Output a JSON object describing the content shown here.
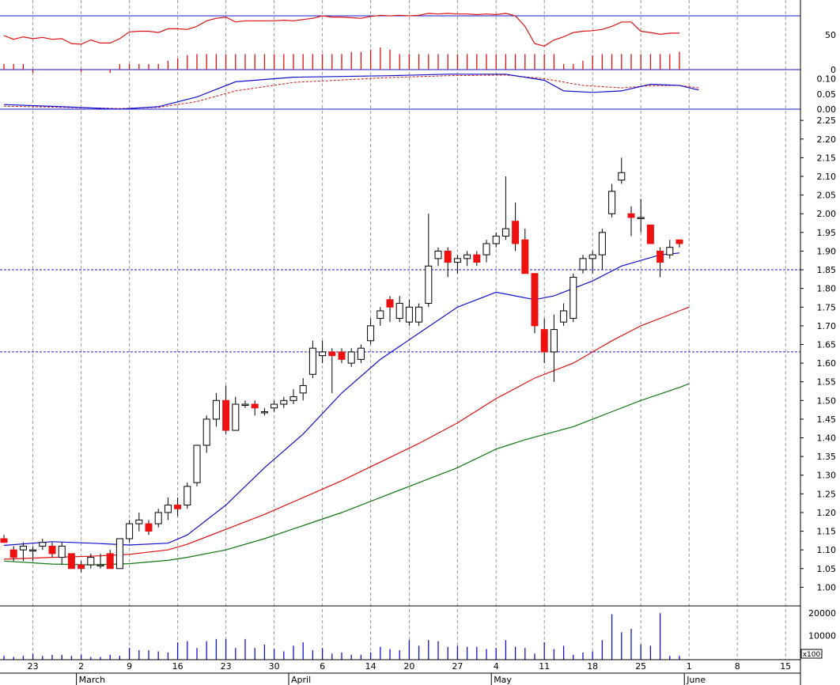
{
  "chart_data": {
    "type": "candlestick",
    "colors": {
      "up": "#ffffff",
      "down": "#ee1111",
      "outline": "#000000",
      "ma_short": "#1111cc",
      "ma_mid": "#dd1111",
      "ma_long": "#117711",
      "grid": "#999999",
      "frame": "#1a1acc",
      "volume": "#1111cc",
      "rsi": "#dd1111"
    },
    "x_axis": {
      "day_labels": [
        {
          "i": 3,
          "label": "23"
        },
        {
          "i": 8,
          "label": "2"
        },
        {
          "i": 13,
          "label": "9"
        },
        {
          "i": 18,
          "label": "16"
        },
        {
          "i": 23,
          "label": "23"
        },
        {
          "i": 28,
          "label": "30"
        },
        {
          "i": 33,
          "label": "6"
        },
        {
          "i": 38,
          "label": "14"
        },
        {
          "i": 42,
          "label": "20"
        },
        {
          "i": 47,
          "label": "27"
        },
        {
          "i": 51,
          "label": "4"
        },
        {
          "i": 56,
          "label": "11"
        },
        {
          "i": 61,
          "label": "18"
        },
        {
          "i": 66,
          "label": "25"
        },
        {
          "i": 71,
          "label": "1"
        },
        {
          "i": 76,
          "label": "8"
        },
        {
          "i": 81,
          "label": "15"
        }
      ],
      "month_labels": [
        {
          "i": 8,
          "label": "March"
        },
        {
          "i": 30,
          "label": "April"
        },
        {
          "i": 51,
          "label": "May"
        },
        {
          "i": 71,
          "label": "June"
        }
      ]
    },
    "price_axis": {
      "min": 0.95,
      "max": 2.28,
      "ticks": [
        "1.00",
        "1.05",
        "1.10",
        "1.15",
        "1.20",
        "1.25",
        "1.30",
        "1.35",
        "1.40",
        "1.45",
        "1.50",
        "1.55",
        "1.60",
        "1.65",
        "1.70",
        "1.75",
        "1.80",
        "1.85",
        "1.90",
        "1.95",
        "2.00",
        "2.05",
        "2.10",
        "2.15",
        "2.20",
        "2.25"
      ],
      "reference_lines": [
        1.85,
        1.63
      ]
    },
    "candles": [
      [
        1.13,
        1.14,
        1.12,
        1.12
      ],
      [
        1.1,
        1.11,
        1.07,
        1.08
      ],
      [
        1.1,
        1.12,
        1.07,
        1.11
      ],
      [
        1.1,
        1.11,
        1.07,
        1.1
      ],
      [
        1.11,
        1.13,
        1.1,
        1.12
      ],
      [
        1.11,
        1.12,
        1.08,
        1.09
      ],
      [
        1.08,
        1.12,
        1.06,
        1.11
      ],
      [
        1.09,
        1.09,
        1.05,
        1.05
      ],
      [
        1.06,
        1.07,
        1.04,
        1.05
      ],
      [
        1.06,
        1.09,
        1.05,
        1.08
      ],
      [
        1.06,
        1.09,
        1.05,
        1.06
      ],
      [
        1.09,
        1.1,
        1.05,
        1.05
      ],
      [
        1.05,
        1.13,
        1.05,
        1.13
      ],
      [
        1.13,
        1.18,
        1.12,
        1.17
      ],
      [
        1.17,
        1.2,
        1.15,
        1.18
      ],
      [
        1.17,
        1.18,
        1.14,
        1.15
      ],
      [
        1.17,
        1.21,
        1.16,
        1.2
      ],
      [
        1.2,
        1.24,
        1.18,
        1.22
      ],
      [
        1.22,
        1.24,
        1.19,
        1.21
      ],
      [
        1.22,
        1.28,
        1.21,
        1.27
      ],
      [
        1.28,
        1.38,
        1.27,
        1.38
      ],
      [
        1.38,
        1.46,
        1.36,
        1.45
      ],
      [
        1.45,
        1.52,
        1.43,
        1.5
      ],
      [
        1.5,
        1.54,
        1.41,
        1.42
      ],
      [
        1.42,
        1.51,
        1.42,
        1.49
      ],
      [
        1.49,
        1.5,
        1.48,
        1.49
      ],
      [
        1.49,
        1.5,
        1.46,
        1.48
      ],
      [
        1.47,
        1.48,
        1.46,
        1.47
      ],
      [
        1.48,
        1.5,
        1.47,
        1.49
      ],
      [
        1.49,
        1.51,
        1.48,
        1.5
      ],
      [
        1.5,
        1.53,
        1.49,
        1.51
      ],
      [
        1.52,
        1.56,
        1.5,
        1.54
      ],
      [
        1.57,
        1.66,
        1.56,
        1.64
      ],
      [
        1.62,
        1.66,
        1.6,
        1.63
      ],
      [
        1.63,
        1.64,
        1.52,
        1.62
      ],
      [
        1.63,
        1.64,
        1.6,
        1.61
      ],
      [
        1.6,
        1.64,
        1.59,
        1.63
      ],
      [
        1.61,
        1.65,
        1.6,
        1.64
      ],
      [
        1.66,
        1.72,
        1.65,
        1.7
      ],
      [
        1.72,
        1.75,
        1.7,
        1.74
      ],
      [
        1.77,
        1.78,
        1.71,
        1.75
      ],
      [
        1.72,
        1.78,
        1.71,
        1.76
      ],
      [
        1.71,
        1.77,
        1.7,
        1.75
      ],
      [
        1.71,
        1.76,
        1.7,
        1.75
      ],
      [
        1.76,
        2.0,
        1.75,
        1.86
      ],
      [
        1.88,
        1.91,
        1.86,
        1.9
      ],
      [
        1.9,
        1.91,
        1.83,
        1.87
      ],
      [
        1.87,
        1.89,
        1.84,
        1.88
      ],
      [
        1.88,
        1.9,
        1.86,
        1.89
      ],
      [
        1.89,
        1.9,
        1.86,
        1.87
      ],
      [
        1.89,
        1.93,
        1.87,
        1.92
      ],
      [
        1.92,
        1.95,
        1.91,
        1.94
      ],
      [
        1.94,
        2.1,
        1.93,
        1.96
      ],
      [
        1.98,
        2.03,
        1.9,
        1.92
      ],
      [
        1.93,
        1.96,
        1.84,
        1.84
      ],
      [
        1.84,
        1.84,
        1.68,
        1.7
      ],
      [
        1.69,
        1.72,
        1.6,
        1.63
      ],
      [
        1.63,
        1.73,
        1.55,
        1.69
      ],
      [
        1.71,
        1.76,
        1.7,
        1.74
      ],
      [
        1.72,
        1.84,
        1.71,
        1.83
      ],
      [
        1.85,
        1.89,
        1.84,
        1.88
      ],
      [
        1.88,
        1.9,
        1.84,
        1.89
      ],
      [
        1.89,
        1.96,
        1.85,
        1.95
      ],
      [
        2.0,
        2.08,
        1.99,
        2.06
      ],
      [
        2.09,
        2.15,
        2.08,
        2.11
      ],
      [
        2.0,
        2.02,
        1.94,
        1.99
      ],
      [
        1.99,
        2.04,
        1.95,
        1.99
      ],
      [
        1.97,
        1.97,
        1.92,
        1.92
      ],
      [
        1.9,
        1.91,
        1.83,
        1.87
      ],
      [
        1.89,
        1.93,
        1.88,
        1.91
      ],
      [
        1.93,
        1.93,
        1.91,
        1.92
      ]
    ],
    "moving_averages": [
      {
        "key": "short",
        "points": [
          [
            0,
            1.112
          ],
          [
            5,
            1.122
          ],
          [
            9,
            1.118
          ],
          [
            13,
            1.113
          ],
          [
            17,
            1.118
          ],
          [
            19,
            1.14
          ],
          [
            23,
            1.22
          ],
          [
            27,
            1.32
          ],
          [
            31,
            1.41
          ],
          [
            35,
            1.52
          ],
          [
            39,
            1.61
          ],
          [
            43,
            1.68
          ],
          [
            47,
            1.75
          ],
          [
            51,
            1.79
          ],
          [
            53,
            1.78
          ],
          [
            55,
            1.77
          ],
          [
            57,
            1.78
          ],
          [
            61,
            1.82
          ],
          [
            64,
            1.86
          ],
          [
            68,
            1.89
          ],
          [
            70,
            1.895
          ]
        ]
      },
      {
        "key": "mid",
        "points": [
          [
            0,
            1.075
          ],
          [
            5,
            1.08
          ],
          [
            9,
            1.083
          ],
          [
            13,
            1.088
          ],
          [
            17,
            1.1
          ],
          [
            19,
            1.115
          ],
          [
            23,
            1.155
          ],
          [
            27,
            1.195
          ],
          [
            31,
            1.24
          ],
          [
            35,
            1.285
          ],
          [
            39,
            1.335
          ],
          [
            43,
            1.385
          ],
          [
            47,
            1.44
          ],
          [
            51,
            1.505
          ],
          [
            55,
            1.56
          ],
          [
            59,
            1.6
          ],
          [
            63,
            1.66
          ],
          [
            66,
            1.7
          ],
          [
            70,
            1.74
          ],
          [
            71,
            1.75
          ]
        ]
      },
      {
        "key": "long",
        "points": [
          [
            0,
            1.07
          ],
          [
            5,
            1.062
          ],
          [
            9,
            1.06
          ],
          [
            13,
            1.063
          ],
          [
            17,
            1.072
          ],
          [
            19,
            1.08
          ],
          [
            23,
            1.1
          ],
          [
            27,
            1.13
          ],
          [
            31,
            1.165
          ],
          [
            35,
            1.2
          ],
          [
            39,
            1.24
          ],
          [
            43,
            1.28
          ],
          [
            47,
            1.32
          ],
          [
            51,
            1.37
          ],
          [
            54,
            1.395
          ],
          [
            59,
            1.43
          ],
          [
            63,
            1.47
          ],
          [
            66,
            1.5
          ],
          [
            70,
            1.535
          ],
          [
            71,
            1.545
          ]
        ]
      }
    ],
    "rsi": {
      "ticks": [
        "0",
        "50"
      ],
      "values": [
        50,
        44,
        48,
        45,
        47,
        44,
        45,
        37,
        36,
        43,
        38,
        38,
        45,
        56,
        57,
        57,
        55,
        61,
        61,
        60,
        65,
        74,
        78,
        80,
        72,
        74,
        74,
        74,
        74,
        75,
        74,
        76,
        78,
        82,
        80,
        80,
        79,
        78,
        81,
        83,
        82,
        83,
        82,
        83,
        86,
        85,
        86,
        85,
        85,
        84,
        85,
        84,
        86,
        82,
        65,
        37,
        33,
        43,
        48,
        55,
        57,
        58,
        60,
        65,
        72,
        72,
        57,
        55,
        52,
        54,
        54
      ]
    },
    "rsi_bars": [
      5,
      5,
      5,
      -3,
      0,
      0,
      0,
      0,
      -2,
      0,
      0,
      -3,
      5,
      5,
      5,
      5,
      5,
      8,
      10,
      13,
      14,
      14,
      14,
      14,
      14,
      14,
      14,
      14,
      14,
      14,
      14,
      14,
      14,
      14,
      14,
      14,
      16,
      16,
      18,
      20,
      18,
      14,
      14,
      14,
      14,
      14,
      14,
      14,
      14,
      14,
      14,
      14,
      14,
      14,
      14,
      14,
      14,
      14,
      5,
      5,
      8,
      13,
      14,
      14,
      14,
      14,
      14,
      14,
      14,
      14,
      16
    ],
    "oscillator": {
      "ticks": [
        "0.00",
        "0.05",
        "0.10"
      ],
      "line": [
        [
          0,
          0.015
        ],
        [
          6,
          0.008
        ],
        [
          12,
          0.0
        ],
        [
          16,
          0.008
        ],
        [
          20,
          0.04
        ],
        [
          24,
          0.09
        ],
        [
          30,
          0.105
        ],
        [
          40,
          0.11
        ],
        [
          46,
          0.115
        ],
        [
          52,
          0.115
        ],
        [
          56,
          0.095
        ],
        [
          58,
          0.06
        ],
        [
          61,
          0.055
        ],
        [
          64,
          0.06
        ],
        [
          67,
          0.082
        ],
        [
          70,
          0.078
        ],
        [
          72,
          0.063
        ]
      ],
      "signal": [
        [
          0,
          0.01
        ],
        [
          6,
          0.006
        ],
        [
          12,
          0.002
        ],
        [
          16,
          0.006
        ],
        [
          20,
          0.025
        ],
        [
          24,
          0.06
        ],
        [
          30,
          0.088
        ],
        [
          40,
          0.104
        ],
        [
          46,
          0.11
        ],
        [
          52,
          0.112
        ],
        [
          56,
          0.1
        ],
        [
          60,
          0.078
        ],
        [
          64,
          0.07
        ],
        [
          67,
          0.077
        ],
        [
          70,
          0.078
        ],
        [
          72,
          0.07
        ]
      ]
    },
    "volume": {
      "unit": "x100",
      "ticks": [
        "10000",
        "20000"
      ],
      "bars": [
        2,
        1,
        2,
        4,
        2,
        3,
        3,
        2,
        3,
        1,
        1,
        3,
        2,
        9,
        7,
        7,
        6,
        5,
        14,
        15,
        9,
        15,
        17,
        17,
        9,
        17,
        9,
        12,
        8,
        6,
        11,
        14,
        7,
        9,
        4,
        5,
        3,
        3,
        5,
        10,
        8,
        7,
        16,
        11,
        16,
        15,
        10,
        11,
        10,
        10,
        8,
        9,
        16,
        10,
        9,
        4,
        14,
        8,
        11,
        3,
        5,
        6,
        16,
        39,
        23,
        26,
        12,
        11,
        40,
        2,
        2
      ]
    }
  }
}
